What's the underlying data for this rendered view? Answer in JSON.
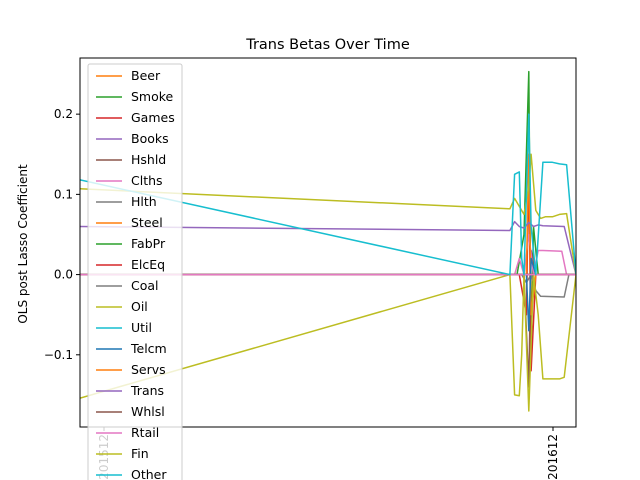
{
  "chart_data": {
    "type": "line",
    "title": "Trans Betas Over Time",
    "xlabel": "",
    "ylabel": "OLS post Lasso Coefficient",
    "x_tick_labels": [
      "201512",
      "201612"
    ],
    "x_range": [
      201440,
      201650
    ],
    "ylim": [
      -0.19,
      0.27
    ],
    "y_ticks": [
      -0.1,
      0.0,
      0.1,
      0.2
    ],
    "y_tick_labels": [
      "−0.1",
      "0.0",
      "0.1",
      "0.2"
    ],
    "grid": false,
    "legend_position": "upper-left",
    "series": [
      {
        "name": "Beer",
        "color": "#ff7f0e",
        "x": [
          201440,
          201630,
          201650
        ],
        "y": [
          0,
          0,
          0
        ]
      },
      {
        "name": "Smoke",
        "color": "#2ca02c",
        "x": [
          201440,
          201625,
          201628,
          201630,
          201631,
          201632,
          201634,
          201636,
          201650
        ],
        "y": [
          0,
          0,
          0.05,
          0.253,
          -0.1,
          0.06,
          0,
          0,
          0
        ]
      },
      {
        "name": "Games",
        "color": "#d62728",
        "x": [
          201440,
          201626,
          201629,
          201630,
          201631,
          201633,
          201650
        ],
        "y": [
          0,
          0,
          -0.05,
          0.14,
          -0.12,
          0,
          0
        ]
      },
      {
        "name": "Books",
        "color": "#9467bd",
        "x": [
          201440,
          201650
        ],
        "y": [
          0,
          0
        ]
      },
      {
        "name": "Hshld",
        "color": "#8c564b",
        "x": [
          201440,
          201628,
          201630,
          201631,
          201633,
          201650
        ],
        "y": [
          0,
          0,
          -0.14,
          0.03,
          0,
          0
        ]
      },
      {
        "name": "Clths",
        "color": "#e377c2",
        "x": [
          201440,
          201624,
          201626,
          201628,
          201630,
          201632,
          201634,
          201636,
          201644,
          201646,
          201650
        ],
        "y": [
          0,
          0,
          0.02,
          0,
          0.05,
          0,
          0.03,
          0.03,
          0.029,
          0,
          0
        ]
      },
      {
        "name": "Hlth",
        "color": "#7f7f7f",
        "x": [
          201440,
          201627,
          201629,
          201631,
          201633,
          201635,
          201645,
          201647,
          201650
        ],
        "y": [
          0,
          0,
          -0.01,
          0,
          -0.02,
          -0.027,
          -0.028,
          0,
          0
        ]
      },
      {
        "name": "Steel",
        "color": "#ff7f0e",
        "x": [
          201440,
          201629,
          201630,
          201631,
          201633,
          201650
        ],
        "y": [
          0,
          0,
          0.15,
          -0.05,
          0,
          0
        ]
      },
      {
        "name": "FabPr",
        "color": "#2ca02c",
        "x": [
          201440,
          201650
        ],
        "y": [
          0,
          0
        ]
      },
      {
        "name": "ElcEq",
        "color": "#d62728",
        "x": [
          201440,
          201650
        ],
        "y": [
          0,
          0
        ]
      },
      {
        "name": "Coal",
        "color": "#7f7f7f",
        "x": [
          201440,
          201650
        ],
        "y": [
          0,
          0
        ]
      },
      {
        "name": "Oil",
        "color": "#bcbd22",
        "x": [
          201440,
          201622,
          201624,
          201626,
          201627,
          201628,
          201630,
          201632,
          201634,
          201636,
          201640,
          201643,
          201645,
          201650
        ],
        "y": [
          -0.154,
          0,
          -0.15,
          -0.151,
          -0.1,
          0,
          -0.17,
          0,
          -0.05,
          -0.13,
          -0.13,
          -0.13,
          -0.128,
          0
        ]
      },
      {
        "name": "Util",
        "color": "#17becf",
        "x": [
          201440,
          201650
        ],
        "y": [
          0,
          0
        ]
      },
      {
        "name": "Telcm",
        "color": "#1f77b4",
        "x": [
          201440,
          201629,
          201630,
          201631,
          201633,
          201650
        ],
        "y": [
          0,
          0,
          -0.07,
          0.02,
          0,
          0
        ]
      },
      {
        "name": "Servs",
        "color": "#ff7f0e",
        "x": [
          201440,
          201650
        ],
        "y": [
          0,
          0
        ]
      },
      {
        "name": "Trans",
        "color": "#9467bd",
        "x": [
          201440,
          201622,
          201624,
          201626,
          201628,
          201630,
          201632,
          201634,
          201636,
          201645,
          201650
        ],
        "y": [
          0.06,
          0.055,
          0.066,
          0.06,
          0.058,
          0.065,
          0.06,
          0.062,
          0.061,
          0.06,
          0
        ]
      },
      {
        "name": "Whlsl",
        "color": "#8c564b",
        "x": [
          201440,
          201650
        ],
        "y": [
          0,
          0
        ]
      },
      {
        "name": "Rtail",
        "color": "#e377c2",
        "x": [
          201440,
          201650
        ],
        "y": [
          0,
          0
        ]
      },
      {
        "name": "Fin",
        "color": "#bcbd22",
        "x": [
          201440,
          201622,
          201624,
          201626,
          201628,
          201630,
          201631,
          201633,
          201635,
          201637,
          201640,
          201643,
          201646,
          201650
        ],
        "y": [
          0.107,
          0.082,
          0.095,
          0.085,
          0.075,
          0.11,
          0.15,
          0.08,
          0.07,
          0.072,
          0.072,
          0.075,
          0.076,
          0
        ]
      },
      {
        "name": "Other",
        "color": "#17becf",
        "x": [
          201440,
          201622,
          201624,
          201626,
          201627,
          201628,
          201629,
          201630,
          201631,
          201633,
          201636,
          201640,
          201643,
          201646,
          201650
        ],
        "y": [
          0.118,
          0,
          0.125,
          0.128,
          0.02,
          0,
          0.1,
          0.2,
          0.06,
          0,
          0.14,
          0.14,
          0.138,
          0.137,
          0
        ]
      }
    ]
  }
}
